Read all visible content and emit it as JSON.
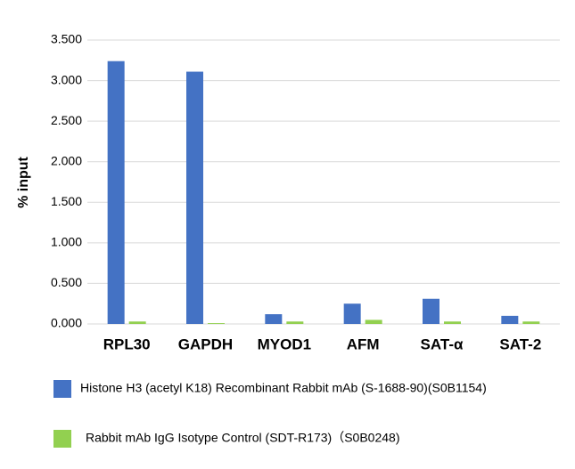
{
  "chart_data": {
    "type": "bar",
    "categories": [
      "RPL30",
      "GAPDH",
      "MYOD1",
      "AFM",
      "SAT-α",
      "SAT-2"
    ],
    "series": [
      {
        "name": "Histone H3 (acetyl K18) Recombinant Rabbit mAb (S-1688-90)(S0B1154)",
        "color": "#4472c4",
        "values": [
          3.24,
          3.11,
          0.12,
          0.25,
          0.31,
          0.1
        ]
      },
      {
        "name": "Rabbit mAb IgG Isotype Control (SDT-R173)（S0B0248)",
        "color": "#92d050",
        "values": [
          0.03,
          0.01,
          0.03,
          0.05,
          0.03,
          0.03
        ]
      }
    ],
    "y_label": "% input",
    "ylim": [
      0,
      3.5
    ],
    "yticks": [
      {
        "value": 0,
        "label": "0.000"
      },
      {
        "value": 0.5,
        "label": "0.500"
      },
      {
        "value": 1,
        "label": "1.000"
      },
      {
        "value": 1.5,
        "label": "1.500"
      },
      {
        "value": 2,
        "label": "2.000"
      },
      {
        "value": 2.5,
        "label": "2.500"
      },
      {
        "value": 3,
        "label": "3.000"
      },
      {
        "value": 3.5,
        "label": "3.500"
      }
    ],
    "grid": true
  }
}
